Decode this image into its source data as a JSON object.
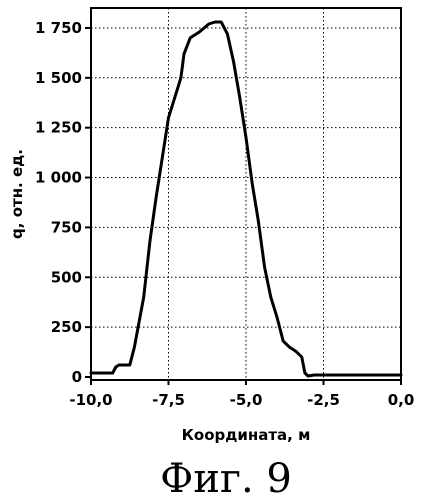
{
  "chart_data": {
    "type": "line",
    "title": "",
    "xlabel": "Координата, м",
    "ylabel": "q, отн. ед.",
    "xlim": [
      -10,
      0
    ],
    "ylim": [
      0,
      1850
    ],
    "grid": true,
    "x_ticks": [
      -10,
      -7.5,
      -5,
      -2.5,
      0
    ],
    "x_tick_labels": [
      "-10,0",
      "-7,5",
      "-5,0",
      "-2,5",
      "0,0"
    ],
    "y_ticks": [
      0,
      250,
      500,
      750,
      1000,
      1250,
      1500,
      1750
    ],
    "y_tick_labels": [
      "0",
      "250",
      "500",
      "750",
      "1 000",
      "1 250",
      "1 500",
      "1 750"
    ],
    "series": [
      {
        "x": [
          -10.0,
          -9.6,
          -9.3,
          -9.2,
          -9.1,
          -8.75,
          -8.6,
          -8.3,
          -8.1,
          -7.9,
          -7.7,
          -7.5,
          -7.3,
          -7.1,
          -7.0,
          -6.8,
          -6.5,
          -6.2,
          -6.0,
          -5.8,
          -5.6,
          -5.4,
          -5.2,
          -5.0,
          -4.8,
          -4.6,
          -4.4,
          -4.2,
          -4.0,
          -3.8,
          -3.6,
          -3.4,
          -3.2,
          -3.1,
          -3.0,
          -2.8,
          -2.5,
          -2.0,
          -1.0,
          0.0
        ],
        "y": [
          20,
          20,
          20,
          50,
          60,
          60,
          150,
          400,
          680,
          900,
          1100,
          1300,
          1400,
          1500,
          1620,
          1700,
          1730,
          1770,
          1780,
          1780,
          1720,
          1580,
          1400,
          1200,
          970,
          780,
          550,
          400,
          300,
          180,
          150,
          130,
          100,
          20,
          5,
          10,
          10,
          10,
          10,
          10
        ]
      }
    ]
  },
  "caption": "Фиг. 9"
}
